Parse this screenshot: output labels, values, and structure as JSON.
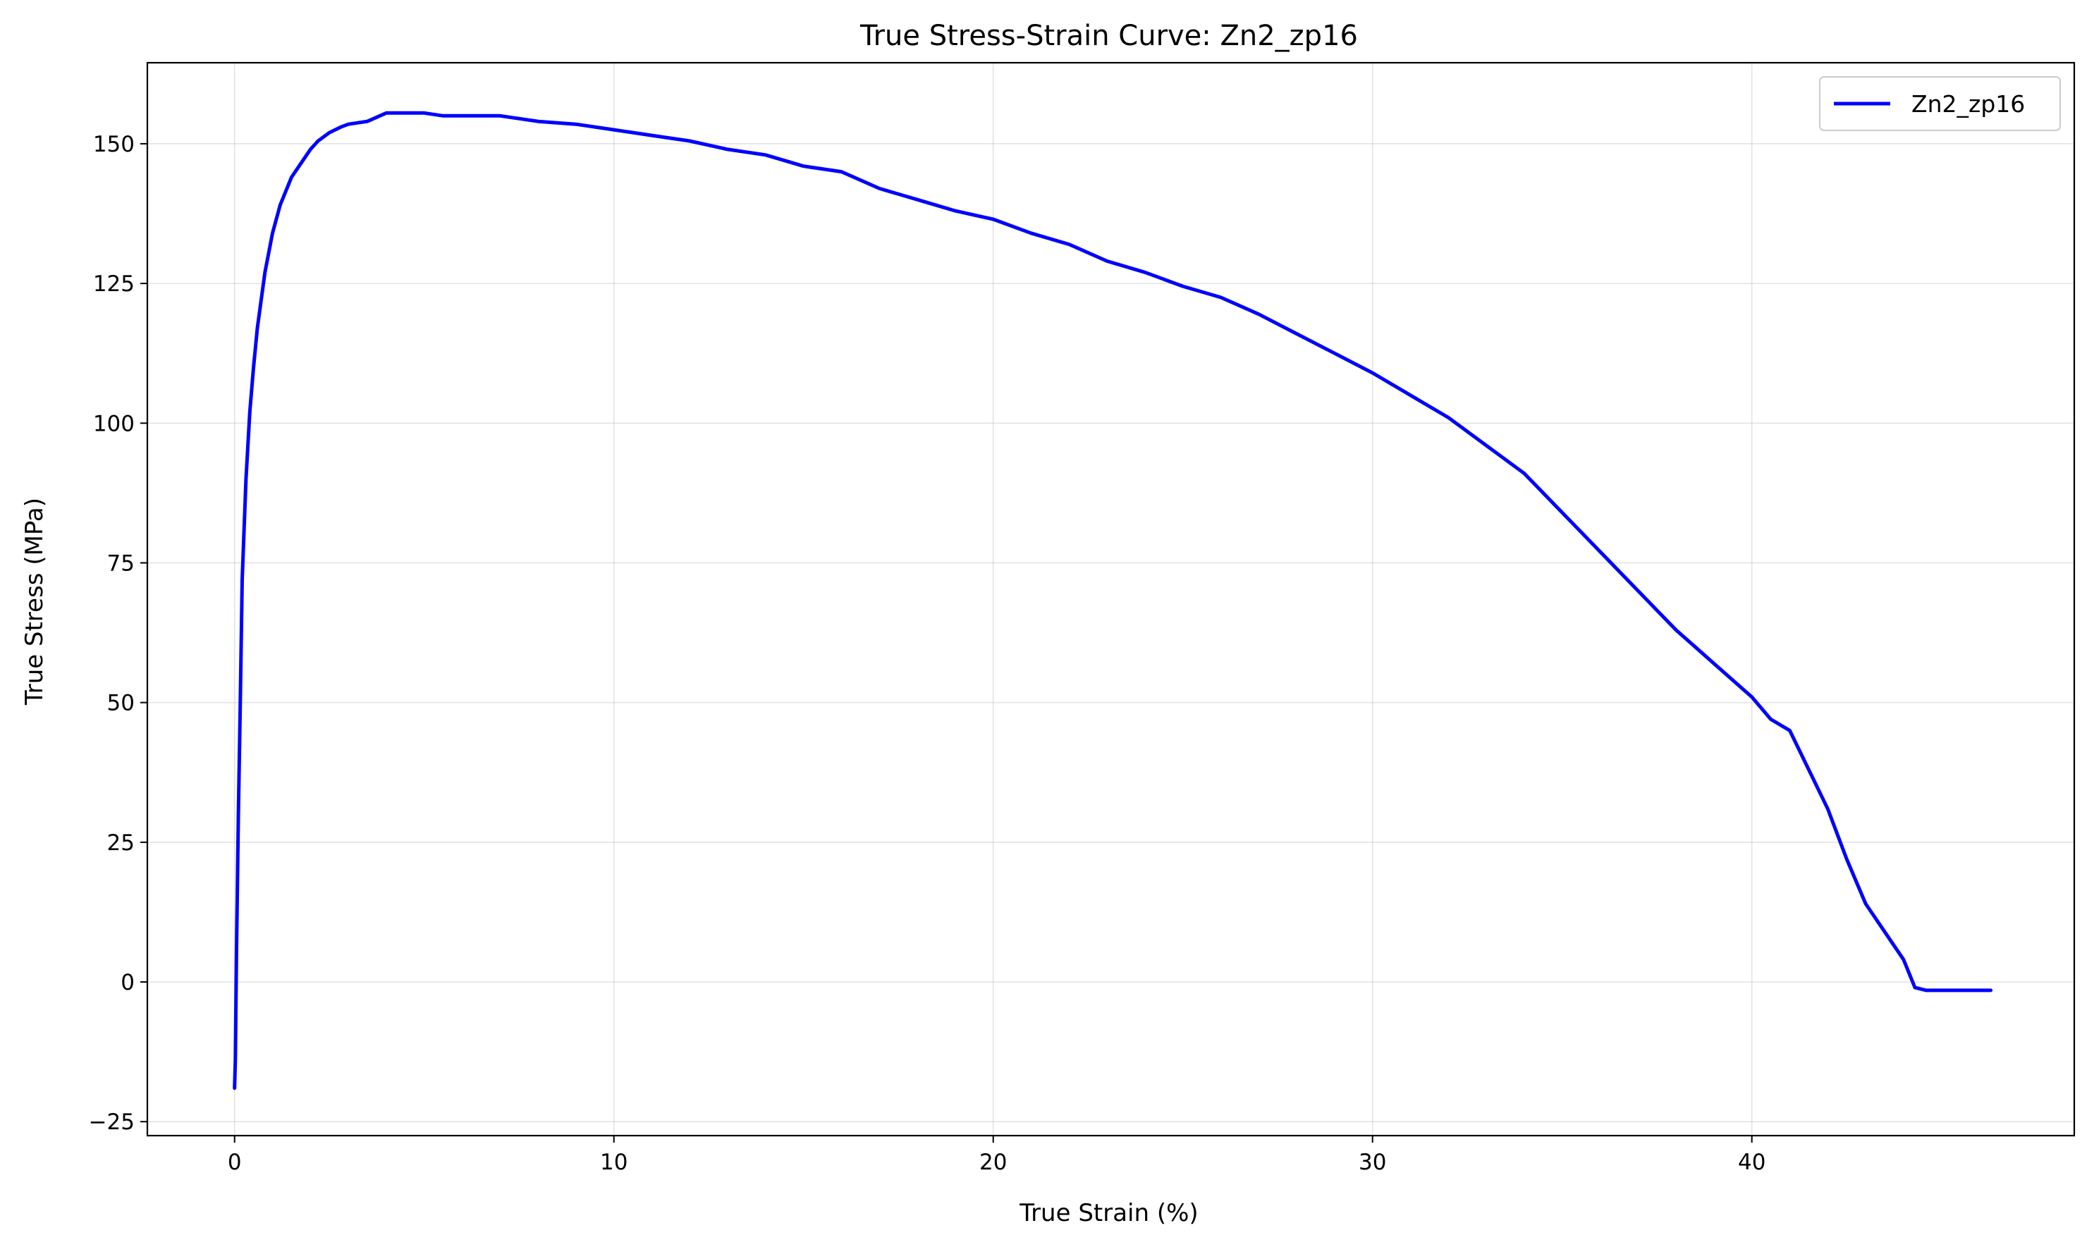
{
  "chart_data": {
    "type": "line",
    "title": "True Stress-Strain Curve: Zn2_zp16",
    "xlabel": "True Strain (%)",
    "ylabel": "True Stress (MPa)",
    "xlim": [
      -2.3,
      48.5
    ],
    "ylim": [
      -27.5,
      164.5
    ],
    "x_ticks": [
      0,
      10,
      20,
      30,
      40
    ],
    "y_ticks": [
      -25,
      0,
      25,
      50,
      75,
      100,
      125,
      150
    ],
    "grid": true,
    "legend_position": "top-right",
    "series": [
      {
        "name": "Zn2_zp16",
        "color": "#0000ff",
        "x": [
          0,
          0.02,
          0.05,
          0.1,
          0.15,
          0.2,
          0.3,
          0.4,
          0.5,
          0.6,
          0.7,
          0.8,
          1.0,
          1.2,
          1.5,
          1.8,
          2.0,
          2.2,
          2.5,
          2.8,
          3.0,
          3.5,
          4.0,
          4.5,
          5.0,
          5.5,
          6.0,
          6.5,
          7.0,
          8.0,
          9.0,
          10.0,
          11.0,
          12.0,
          13.0,
          14.0,
          15.0,
          16.0,
          17.0,
          18.0,
          19.0,
          20.0,
          21.0,
          22.0,
          23.0,
          24.0,
          25.0,
          26.0,
          27.0,
          28.0,
          29.0,
          30.0,
          31.0,
          32.0,
          33.0,
          34.0,
          35.0,
          36.0,
          37.0,
          38.0,
          39.0,
          40.0,
          40.5,
          41.0,
          41.5,
          42.0,
          42.5,
          43.0,
          43.5,
          44.0,
          44.3,
          44.6,
          45.0,
          46.3
        ],
        "y": [
          -19,
          -14,
          5,
          30,
          50,
          72,
          90,
          102,
          110,
          117,
          122,
          127,
          134,
          139,
          144,
          147,
          149,
          150.5,
          152,
          153,
          153.5,
          154,
          155.5,
          155.5,
          155.5,
          155,
          155,
          155,
          155,
          154,
          153.5,
          152.5,
          151.5,
          150.5,
          149,
          148,
          146,
          145,
          142,
          140,
          138,
          136.5,
          134,
          132,
          129,
          127,
          124.5,
          122.5,
          119.5,
          116,
          112.5,
          109,
          105,
          101,
          96,
          91,
          84,
          77,
          70,
          63,
          57,
          51,
          47,
          45,
          38,
          31,
          22,
          14,
          9,
          4,
          -1,
          -1.5,
          -1.5,
          -1.5
        ]
      }
    ]
  }
}
